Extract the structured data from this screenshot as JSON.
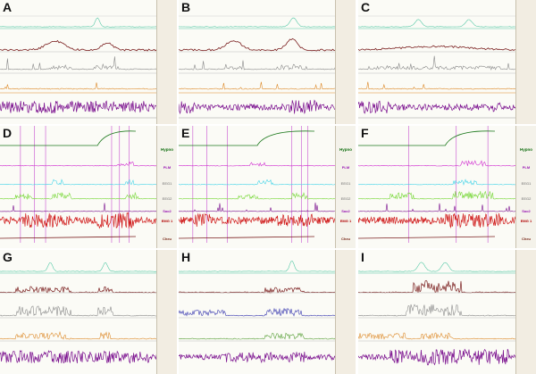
{
  "panels": [
    {
      "id": "A",
      "letter": "A"
    },
    {
      "id": "B",
      "letter": "B"
    },
    {
      "id": "C",
      "letter": "C"
    },
    {
      "id": "D",
      "letter": "D"
    },
    {
      "id": "E",
      "letter": "E"
    },
    {
      "id": "F",
      "letter": "F"
    },
    {
      "id": "G",
      "letter": "G"
    },
    {
      "id": "H",
      "letter": "H"
    },
    {
      "id": "I",
      "letter": "I"
    }
  ],
  "channel_tags": {
    "D": [
      "Hypno",
      "PLM",
      "EEG1",
      "EEG2",
      "Sao2",
      "EMG 1",
      "Cheu"
    ],
    "E": [
      "Hypno",
      "PLM",
      "EEG1",
      "EEG2",
      "Sao2",
      "EMG 1",
      "Cheu"
    ],
    "F": [
      "Hypno",
      "PLM",
      "EEG1",
      "EEG2",
      "Sao2",
      "EMG 1",
      "Cheu"
    ]
  },
  "colors": {
    "teal": "#55c9a6",
    "brown": "#7a1e1e",
    "grey": "#8a8a8a",
    "orange": "#dd8a2a",
    "purple": "#7a0f8e",
    "green": "#1f7a1f",
    "magenta": "#d02bd0",
    "cyan": "#42d4e8",
    "lime": "#79d83a",
    "red": "#d01b1b",
    "blue": "#3a3ab0",
    "olive": "#5aa03a"
  }
}
